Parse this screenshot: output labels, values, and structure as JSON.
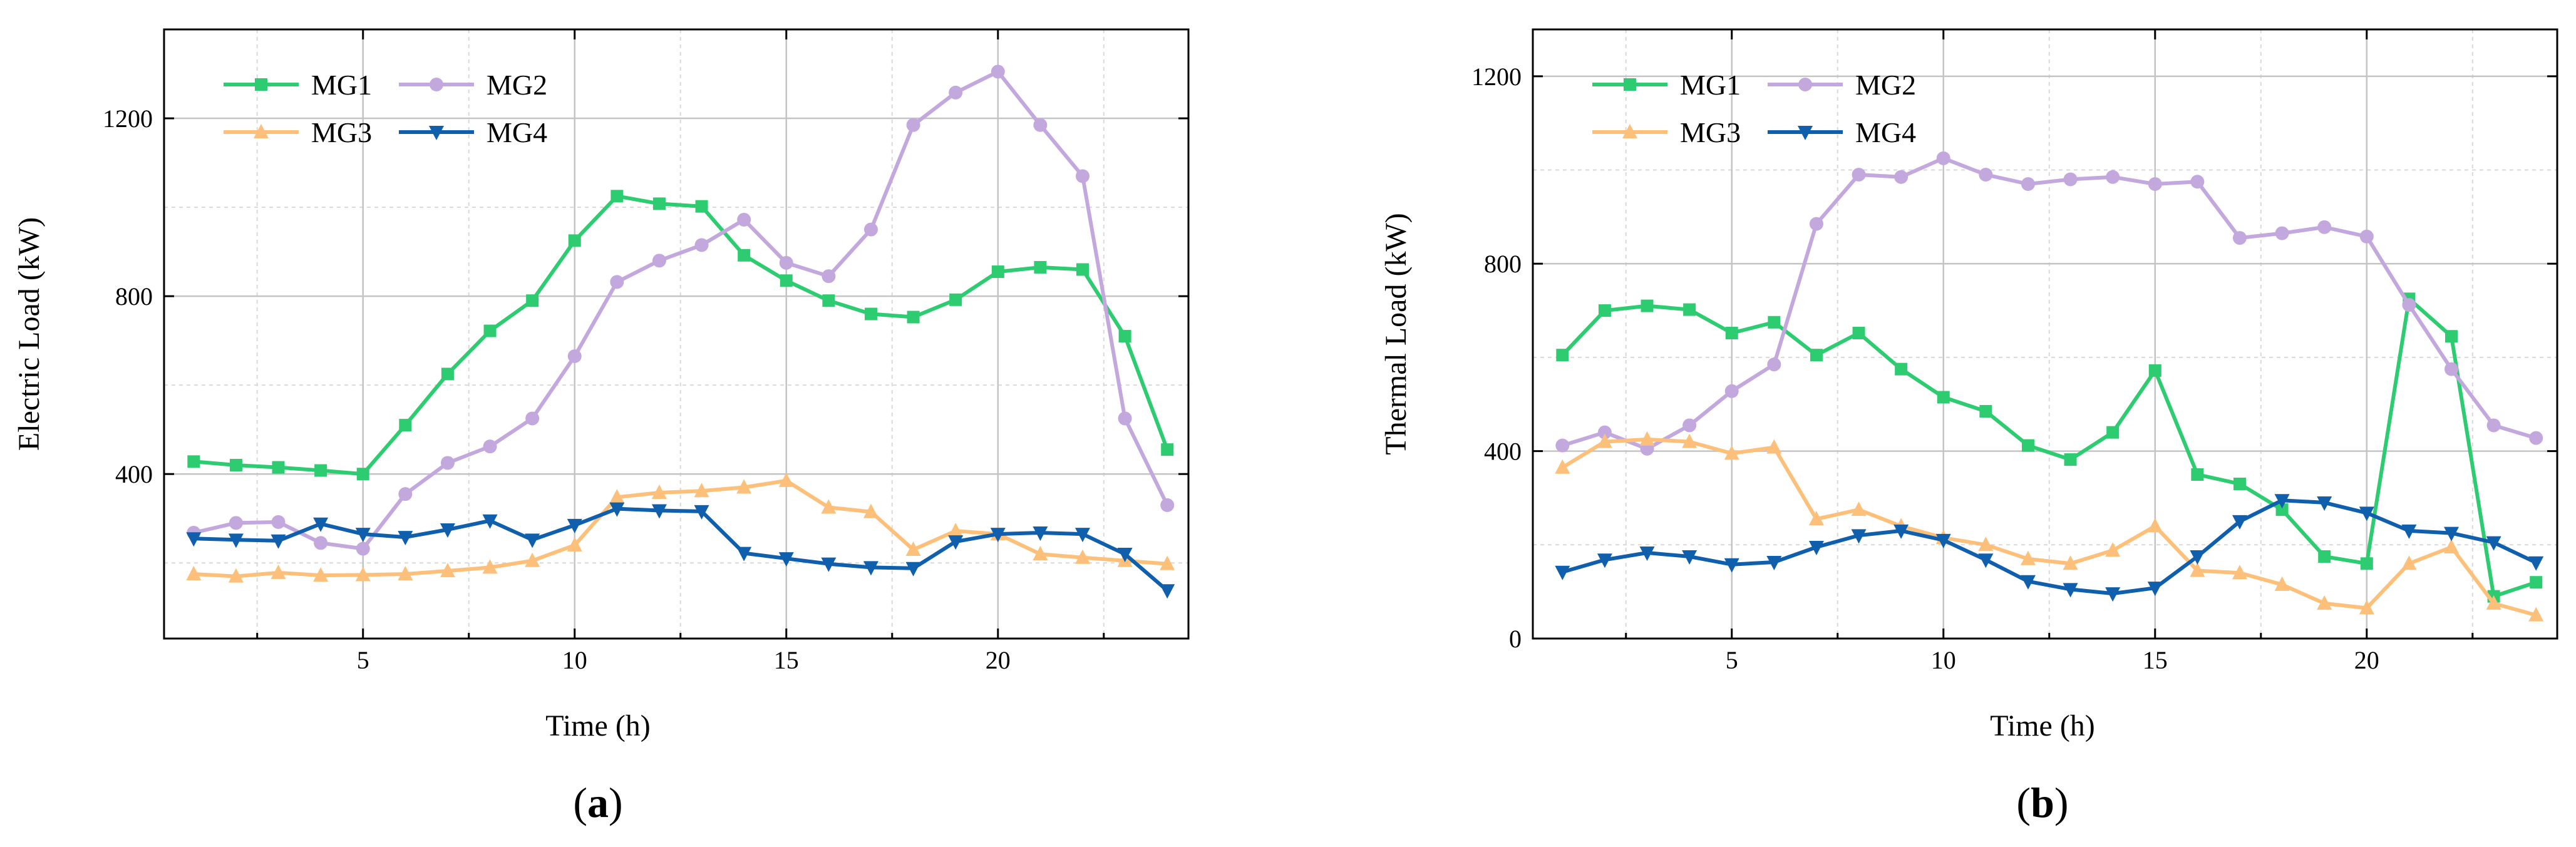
{
  "chart_data": [
    {
      "type": "line",
      "panel_label": "a",
      "xlabel": "Time (h)",
      "ylabel": "Electric Load (kW)",
      "xlim": [
        0.3,
        24.5
      ],
      "ylim": [
        30,
        1400
      ],
      "xticks": [
        5,
        10,
        15,
        20
      ],
      "yticks": [
        400,
        800,
        1200
      ],
      "legend_position": "top-left",
      "x": [
        1,
        2,
        3,
        4,
        5,
        6,
        7,
        8,
        9,
        10,
        11,
        12,
        13,
        14,
        15,
        16,
        17,
        18,
        19,
        20,
        21,
        22,
        23,
        24
      ],
      "series": [
        {
          "name": "MG1",
          "color": "#2ecc71",
          "marker": "square",
          "values": [
            428,
            420,
            415,
            408,
            400,
            510,
            625,
            722,
            790,
            925,
            1025,
            1008,
            1002,
            892,
            835,
            790,
            760,
            753,
            792,
            855,
            865,
            860,
            710,
            455
          ]
        },
        {
          "name": "MG2",
          "color": "#c3a8dd",
          "marker": "circle",
          "values": [
            268,
            290,
            292,
            245,
            232,
            355,
            425,
            462,
            525,
            665,
            832,
            880,
            915,
            972,
            875,
            845,
            950,
            1185,
            1258,
            1305,
            1185,
            1070,
            525,
            330
          ]
        },
        {
          "name": "MG3",
          "color": "#fcc07a",
          "marker": "triangle-up",
          "values": [
            175,
            170,
            178,
            172,
            173,
            175,
            182,
            190,
            205,
            240,
            348,
            358,
            362,
            370,
            385,
            325,
            315,
            230,
            272,
            265,
            220,
            212,
            205,
            198
          ]
        },
        {
          "name": "MG4",
          "color": "#0f5fad",
          "marker": "triangle-down",
          "values": [
            255,
            252,
            250,
            288,
            265,
            258,
            275,
            295,
            252,
            285,
            322,
            318,
            316,
            222,
            210,
            198,
            190,
            188,
            248,
            265,
            268,
            265,
            220,
            138
          ]
        }
      ]
    },
    {
      "type": "line",
      "panel_label": "b",
      "xlabel": "Time (h)",
      "ylabel": "Thermal Load (kW)",
      "xlim": [
        0.3,
        24.5
      ],
      "ylim": [
        0,
        1300
      ],
      "xticks": [
        5,
        10,
        15,
        20
      ],
      "yticks": [
        0,
        400,
        800,
        1200
      ],
      "legend_position": "top-left",
      "x": [
        1,
        2,
        3,
        4,
        5,
        6,
        7,
        8,
        9,
        10,
        11,
        12,
        13,
        14,
        15,
        16,
        17,
        18,
        19,
        20,
        21,
        22,
        23,
        24
      ],
      "series": [
        {
          "name": "MG1",
          "color": "#2ecc71",
          "marker": "square",
          "values": [
            605,
            700,
            710,
            702,
            652,
            675,
            605,
            652,
            575,
            515,
            485,
            412,
            382,
            440,
            572,
            350,
            330,
            275,
            175,
            160,
            725,
            645,
            90,
            120
          ]
        },
        {
          "name": "MG2",
          "color": "#c3a8dd",
          "marker": "circle",
          "values": [
            412,
            440,
            405,
            455,
            528,
            585,
            885,
            990,
            985,
            1025,
            990,
            970,
            980,
            985,
            970,
            975,
            855,
            865,
            878,
            858,
            712,
            575,
            455,
            428
          ]
        },
        {
          "name": "MG3",
          "color": "#fcc07a",
          "marker": "triangle-up",
          "values": [
            365,
            420,
            425,
            420,
            395,
            408,
            255,
            275,
            240,
            215,
            200,
            170,
            160,
            188,
            240,
            145,
            140,
            115,
            75,
            65,
            160,
            195,
            75,
            50
          ]
        },
        {
          "name": "MG4",
          "color": "#0f5fad",
          "marker": "triangle-down",
          "values": [
            142,
            168,
            183,
            175,
            158,
            163,
            195,
            220,
            230,
            210,
            168,
            122,
            105,
            96,
            108,
            175,
            250,
            295,
            290,
            268,
            230,
            225,
            205,
            162
          ]
        }
      ]
    }
  ]
}
